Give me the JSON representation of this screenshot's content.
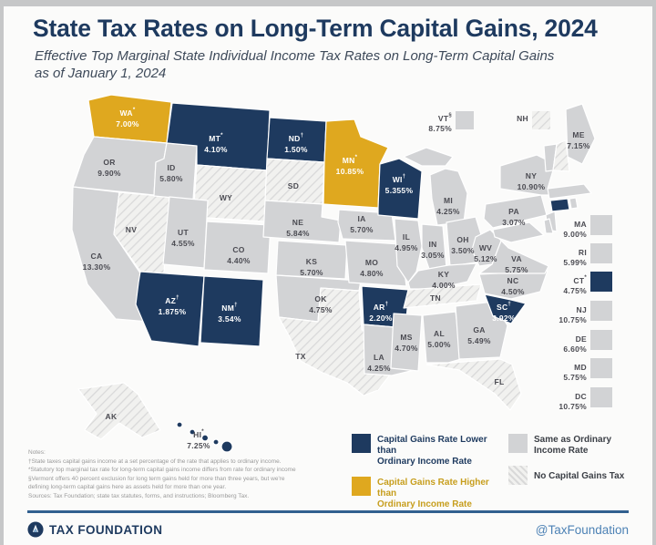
{
  "header": {
    "title": "State Tax Rates on Long-Term Capital Gains, 2024",
    "subtitle": "Effective Top Marginal State Individual Income Tax Rates on Long-Term Capital Gains as of January 1, 2024"
  },
  "colors": {
    "lower": "#1e3a5f",
    "higher": "#dfa81f",
    "same": "#d2d3d5",
    "none_bg": "#f1f1ef",
    "none_stripe": "#d9d9d9",
    "label_dark": "#4b4b52",
    "label_light": "#ffffff",
    "stroke": "#ffffff"
  },
  "map": {
    "states": [
      {
        "id": "WA",
        "code": "WA",
        "sup": "*",
        "value": "7.00%",
        "category": "higher"
      },
      {
        "id": "OR",
        "code": "OR",
        "sup": "",
        "value": "9.90%",
        "category": "same"
      },
      {
        "id": "CA",
        "code": "CA",
        "sup": "",
        "value": "13.30%",
        "category": "same"
      },
      {
        "id": "NV",
        "code": "NV",
        "sup": "",
        "value": "",
        "category": "none"
      },
      {
        "id": "ID",
        "code": "ID",
        "sup": "",
        "value": "5.80%",
        "category": "same"
      },
      {
        "id": "MT",
        "code": "MT",
        "sup": "*",
        "value": "4.10%",
        "category": "lower"
      },
      {
        "id": "WY",
        "code": "WY",
        "sup": "",
        "value": "",
        "category": "none"
      },
      {
        "id": "UT",
        "code": "UT",
        "sup": "",
        "value": "4.55%",
        "category": "same"
      },
      {
        "id": "CO",
        "code": "CO",
        "sup": "",
        "value": "4.40%",
        "category": "same"
      },
      {
        "id": "AZ",
        "code": "AZ",
        "sup": "†",
        "value": "1.875%",
        "category": "lower"
      },
      {
        "id": "NM",
        "code": "NM",
        "sup": "†",
        "value": "3.54%",
        "category": "lower"
      },
      {
        "id": "ND",
        "code": "ND",
        "sup": "†",
        "value": "1.50%",
        "category": "lower"
      },
      {
        "id": "SD",
        "code": "SD",
        "sup": "",
        "value": "",
        "category": "none"
      },
      {
        "id": "NE",
        "code": "NE",
        "sup": "",
        "value": "5.84%",
        "category": "same"
      },
      {
        "id": "KS",
        "code": "KS",
        "sup": "",
        "value": "5.70%",
        "category": "same"
      },
      {
        "id": "OK",
        "code": "OK",
        "sup": "",
        "value": "4.75%",
        "category": "same"
      },
      {
        "id": "TX",
        "code": "TX",
        "sup": "",
        "value": "",
        "category": "none"
      },
      {
        "id": "MN",
        "code": "MN",
        "sup": "*",
        "value": "10.85%",
        "category": "higher"
      },
      {
        "id": "IA",
        "code": "IA",
        "sup": "",
        "value": "5.70%",
        "category": "same"
      },
      {
        "id": "MO",
        "code": "MO",
        "sup": "",
        "value": "4.80%",
        "category": "same"
      },
      {
        "id": "AR",
        "code": "AR",
        "sup": "†",
        "value": "2.20%",
        "category": "lower"
      },
      {
        "id": "LA",
        "code": "LA",
        "sup": "",
        "value": "4.25%",
        "category": "same"
      },
      {
        "id": "WI",
        "code": "WI",
        "sup": "†",
        "value": "5.355%",
        "category": "lower"
      },
      {
        "id": "IL",
        "code": "IL",
        "sup": "",
        "value": "4.95%",
        "category": "same"
      },
      {
        "id": "MS",
        "code": "MS",
        "sup": "",
        "value": "4.70%",
        "category": "same"
      },
      {
        "id": "MI",
        "code": "MI",
        "sup": "",
        "value": "4.25%",
        "category": "same"
      },
      {
        "id": "IN",
        "code": "IN",
        "sup": "",
        "value": "3.05%",
        "category": "same"
      },
      {
        "id": "OH",
        "code": "OH",
        "sup": "",
        "value": "3.50%",
        "category": "same"
      },
      {
        "id": "KY",
        "code": "KY",
        "sup": "",
        "value": "4.00%",
        "category": "same"
      },
      {
        "id": "TN",
        "code": "TN",
        "sup": "",
        "value": "",
        "category": "none"
      },
      {
        "id": "AL",
        "code": "AL",
        "sup": "",
        "value": "5.00%",
        "category": "same"
      },
      {
        "id": "GA",
        "code": "GA",
        "sup": "",
        "value": "5.49%",
        "category": "same"
      },
      {
        "id": "FL",
        "code": "FL",
        "sup": "",
        "value": "",
        "category": "none"
      },
      {
        "id": "SC",
        "code": "SC",
        "sup": "†",
        "value": "3.92%",
        "category": "lower"
      },
      {
        "id": "NC",
        "code": "NC",
        "sup": "",
        "value": "4.50%",
        "category": "same"
      },
      {
        "id": "VA",
        "code": "VA",
        "sup": "",
        "value": "5.75%",
        "category": "same"
      },
      {
        "id": "WV",
        "code": "WV",
        "sup": "",
        "value": "5.12%",
        "category": "same"
      },
      {
        "id": "PA",
        "code": "PA",
        "sup": "",
        "value": "3.07%",
        "category": "same"
      },
      {
        "id": "NY",
        "code": "NY",
        "sup": "",
        "value": "10.90%",
        "category": "same"
      },
      {
        "id": "ME",
        "code": "ME",
        "sup": "",
        "value": "7.15%",
        "category": "same"
      },
      {
        "id": "VT",
        "code": "VT",
        "sup": "§",
        "value": "8.75%",
        "category": "same"
      },
      {
        "id": "NH",
        "code": "NH",
        "sup": "",
        "value": "",
        "category": "none"
      },
      {
        "id": "MA",
        "code": "MA",
        "sup": "",
        "value": "9.00%",
        "category": "same"
      },
      {
        "id": "RI",
        "code": "RI",
        "sup": "",
        "value": "5.99%",
        "category": "same"
      },
      {
        "id": "CT",
        "code": "CT",
        "sup": "*",
        "value": "4.75%",
        "category": "lower"
      },
      {
        "id": "NJ",
        "code": "NJ",
        "sup": "",
        "value": "10.75%",
        "category": "same"
      },
      {
        "id": "DE",
        "code": "DE",
        "sup": "",
        "value": "6.60%",
        "category": "same"
      },
      {
        "id": "MD",
        "code": "MD",
        "sup": "",
        "value": "5.75%",
        "category": "same"
      },
      {
        "id": "DC",
        "code": "DC",
        "sup": "",
        "value": "10.75%",
        "category": "same"
      },
      {
        "id": "AK",
        "code": "AK",
        "sup": "",
        "value": "",
        "category": "none"
      },
      {
        "id": "HI",
        "code": "HI",
        "sup": "*",
        "value": "7.25%",
        "category": "lower"
      }
    ]
  },
  "legend": {
    "items": [
      {
        "key": "lower",
        "line1": "Capital Gains Rate Lower than",
        "line2": "Ordinary Income Rate"
      },
      {
        "key": "higher",
        "line1": "Capital Gains Rate Higher than",
        "line2": "Ordinary Income Rate"
      },
      {
        "key": "same",
        "line1": "Same as Ordinary",
        "line2": "Income Rate"
      },
      {
        "key": "none",
        "line1": "No Capital Gains Tax",
        "line2": ""
      }
    ]
  },
  "notes": {
    "lines": [
      "Notes:",
      "†State taxes capital gains income at a set percentage of the rate that applies to ordinary income.",
      "*Statutory top marginal tax rate for long-term capital gains income differs from rate for ordinary income",
      "§Vermont offers 40 percent exclusion for long term gains held for more than three years, but we're",
      "defining long-term capital gains here as assets held for more than one year.",
      "Sources: Tax Foundation; state tax statutes, forms, and instructions; Bloomberg Tax."
    ]
  },
  "footer": {
    "brand": "TAX FOUNDATION",
    "handle": "@TaxFoundation"
  }
}
